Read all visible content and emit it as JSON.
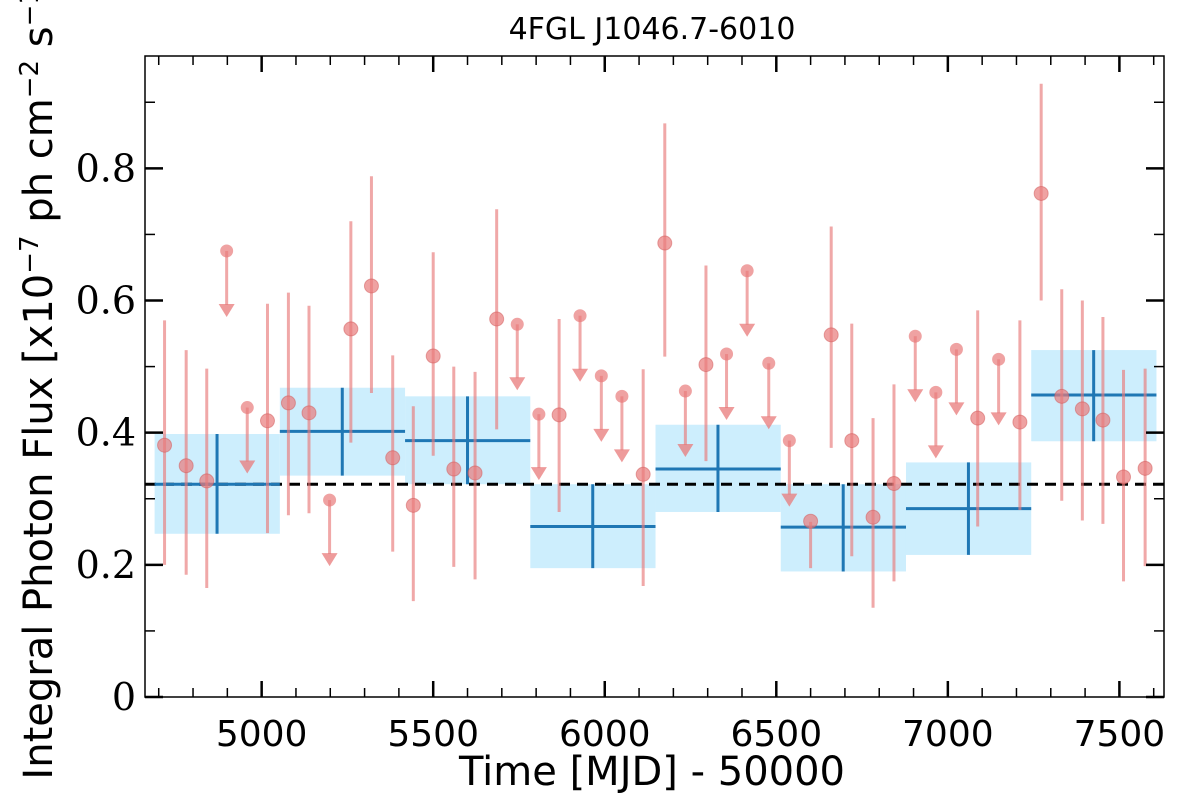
{
  "chart_data": {
    "type": "scatter",
    "title": "4FGL J1046.7-6010",
    "xlabel": "Time [MJD] - 50000",
    "ylabel": "Integral Photon Flux [x10",
    "ylabel_exp1": "−7",
    "ylabel_mid": " ph cm",
    "ylabel_exp2": "−2",
    "ylabel_s": " s",
    "ylabel_exp3": "−1",
    "ylabel_close": "]",
    "xlim": [
      4660,
      7630
    ],
    "ylim": [
      0,
      0.97
    ],
    "x_ticks": [
      {
        "value": 5000,
        "label": "5000"
      },
      {
        "value": 5500,
        "label": "5500"
      },
      {
        "value": 6000,
        "label": "6000"
      },
      {
        "value": 6500,
        "label": "6500"
      },
      {
        "value": 7000,
        "label": "7000"
      },
      {
        "value": 7500,
        "label": "7500"
      }
    ],
    "y_ticks": [
      {
        "value": 0,
        "label": "0"
      },
      {
        "value": 0.2,
        "label": "0.2"
      },
      {
        "value": 0.4,
        "label": "0.4"
      },
      {
        "value": 0.6,
        "label": "0.6"
      },
      {
        "value": 0.8,
        "label": "0.8"
      }
    ],
    "average_flux": 0.322,
    "colors": {
      "points": "#e87a7a",
      "bins": "#1f77b4",
      "bands": "#cdeefd",
      "mean_line": "#000000"
    },
    "series": [
      {
        "kind": "detections",
        "points": [
          {
            "x": 4717,
            "y": 0.381,
            "lo": 0.2,
            "hi": 0.57
          },
          {
            "x": 4780,
            "y": 0.35,
            "lo": 0.185,
            "hi": 0.525
          },
          {
            "x": 4840,
            "y": 0.327,
            "lo": 0.165,
            "hi": 0.497
          },
          {
            "x": 5017,
            "y": 0.418,
            "lo": 0.248,
            "hi": 0.595
          },
          {
            "x": 5078,
            "y": 0.445,
            "lo": 0.275,
            "hi": 0.612
          },
          {
            "x": 5138,
            "y": 0.43,
            "lo": 0.278,
            "hi": 0.592
          },
          {
            "x": 5260,
            "y": 0.557,
            "lo": 0.385,
            "hi": 0.72
          },
          {
            "x": 5320,
            "y": 0.622,
            "lo": 0.46,
            "hi": 0.788
          },
          {
            "x": 5382,
            "y": 0.362,
            "lo": 0.22,
            "hi": 0.517
          },
          {
            "x": 5442,
            "y": 0.29,
            "lo": 0.145,
            "hi": 0.44
          },
          {
            "x": 5500,
            "y": 0.516,
            "lo": 0.365,
            "hi": 0.673
          },
          {
            "x": 5560,
            "y": 0.345,
            "lo": 0.197,
            "hi": 0.5
          },
          {
            "x": 5622,
            "y": 0.339,
            "lo": 0.178,
            "hi": 0.492
          },
          {
            "x": 5685,
            "y": 0.572,
            "lo": 0.405,
            "hi": 0.738
          },
          {
            "x": 5867,
            "y": 0.427,
            "lo": 0.28,
            "hi": 0.572
          },
          {
            "x": 6112,
            "y": 0.337,
            "lo": 0.168,
            "hi": 0.496
          },
          {
            "x": 6175,
            "y": 0.687,
            "lo": 0.515,
            "hi": 0.868
          },
          {
            "x": 6295,
            "y": 0.503,
            "lo": 0.357,
            "hi": 0.653
          },
          {
            "x": 6600,
            "y": 0.266,
            "lo": 0.195,
            "hi": 0.265
          },
          {
            "x": 6660,
            "y": 0.548,
            "lo": 0.377,
            "hi": 0.712
          },
          {
            "x": 6720,
            "y": 0.388,
            "lo": 0.213,
            "hi": 0.565
          },
          {
            "x": 6782,
            "y": 0.272,
            "lo": 0.135,
            "hi": 0.422
          },
          {
            "x": 6843,
            "y": 0.323,
            "lo": 0.175,
            "hi": 0.473
          },
          {
            "x": 7087,
            "y": 0.422,
            "lo": 0.258,
            "hi": 0.585
          },
          {
            "x": 7210,
            "y": 0.416,
            "lo": 0.283,
            "hi": 0.57
          },
          {
            "x": 7272,
            "y": 0.762,
            "lo": 0.6,
            "hi": 0.928
          },
          {
            "x": 7332,
            "y": 0.455,
            "lo": 0.297,
            "hi": 0.617
          },
          {
            "x": 7392,
            "y": 0.436,
            "lo": 0.267,
            "hi": 0.6
          },
          {
            "x": 7452,
            "y": 0.419,
            "lo": 0.262,
            "hi": 0.575
          },
          {
            "x": 7512,
            "y": 0.333,
            "lo": 0.175,
            "hi": 0.495
          },
          {
            "x": 7575,
            "y": 0.346,
            "lo": 0.198,
            "hi": 0.497
          }
        ]
      },
      {
        "kind": "upper_limits",
        "points": [
          {
            "x": 4898,
            "y": 0.675
          },
          {
            "x": 4958,
            "y": 0.438
          },
          {
            "x": 5198,
            "y": 0.298
          },
          {
            "x": 5745,
            "y": 0.564
          },
          {
            "x": 5808,
            "y": 0.428
          },
          {
            "x": 5928,
            "y": 0.577
          },
          {
            "x": 5990,
            "y": 0.486
          },
          {
            "x": 6050,
            "y": 0.455
          },
          {
            "x": 6235,
            "y": 0.463
          },
          {
            "x": 6355,
            "y": 0.519
          },
          {
            "x": 6415,
            "y": 0.645
          },
          {
            "x": 6478,
            "y": 0.505
          },
          {
            "x": 6538,
            "y": 0.388
          },
          {
            "x": 6905,
            "y": 0.546
          },
          {
            "x": 6965,
            "y": 0.461
          },
          {
            "x": 7025,
            "y": 0.526
          },
          {
            "x": 7148,
            "y": 0.511
          }
        ]
      },
      {
        "kind": "binned",
        "points": [
          {
            "x0": 4688,
            "x1": 5053,
            "x": 4870,
            "y": 0.322,
            "lo": 0.247,
            "hi": 0.398
          },
          {
            "x0": 5053,
            "x1": 5418,
            "x": 5235,
            "y": 0.402,
            "lo": 0.335,
            "hi": 0.468
          },
          {
            "x0": 5418,
            "x1": 5783,
            "x": 5600,
            "y": 0.388,
            "lo": 0.322,
            "hi": 0.455
          },
          {
            "x0": 5783,
            "x1": 6148,
            "x": 5965,
            "y": 0.258,
            "lo": 0.195,
            "hi": 0.322
          },
          {
            "x0": 6148,
            "x1": 6513,
            "x": 6330,
            "y": 0.345,
            "lo": 0.28,
            "hi": 0.412
          },
          {
            "x0": 6513,
            "x1": 6878,
            "x": 6695,
            "y": 0.257,
            "lo": 0.19,
            "hi": 0.322
          },
          {
            "x0": 6878,
            "x1": 7243,
            "x": 7060,
            "y": 0.285,
            "lo": 0.215,
            "hi": 0.355
          },
          {
            "x0": 7243,
            "x1": 7608,
            "x": 7425,
            "y": 0.457,
            "lo": 0.387,
            "hi": 0.525
          }
        ]
      }
    ]
  }
}
